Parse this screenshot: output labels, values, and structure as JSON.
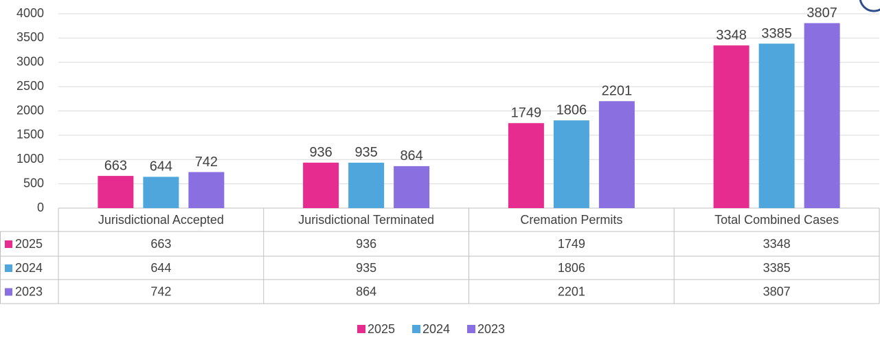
{
  "chart_data": {
    "type": "bar",
    "categories": [
      "Jurisdictional Accepted",
      "Jurisdictional Terminated",
      "Cremation Permits",
      "Total Combined Cases"
    ],
    "series": [
      {
        "name": "2025",
        "color": "#e62d8f",
        "values": [
          663,
          936,
          1749,
          3348
        ]
      },
      {
        "name": "2024",
        "color": "#4ea6dc",
        "values": [
          644,
          935,
          1806,
          3385
        ]
      },
      {
        "name": "2023",
        "color": "#8a6fe0",
        "values": [
          742,
          864,
          2201,
          3807
        ]
      }
    ],
    "ylim": [
      0,
      4000
    ],
    "yticks": [
      0,
      500,
      1000,
      1500,
      2000,
      2500,
      3000,
      3500,
      4000
    ],
    "grid": true,
    "legend": "bottom"
  }
}
